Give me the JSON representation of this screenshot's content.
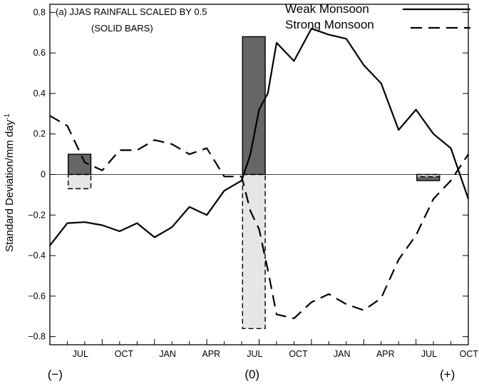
{
  "chart_data": {
    "type": "line",
    "title": "(a) JJAS RAINFALL SCALED BY 0.5",
    "subtitle": "(SOLID BARS)",
    "ylabel": "Standard Deviation/mm day",
    "ylabel_sup": "-1",
    "ylim": [
      -0.84,
      0.84
    ],
    "yticks": [
      -0.8,
      -0.6,
      -0.4,
      -0.2,
      0,
      0.2,
      0.4,
      0.6,
      0.8
    ],
    "ytick_labels": [
      "−0.8",
      "−0.6",
      "−0.4",
      "−0.2",
      "0",
      "0.2",
      "0.4",
      "0.6",
      "0.8"
    ],
    "xlim": [
      0,
      24
    ],
    "xticks": [
      {
        "x": 1.75,
        "label": "JUL"
      },
      {
        "x": 4.25,
        "label": "OCT"
      },
      {
        "x": 6.75,
        "label": "JAN"
      },
      {
        "x": 9.25,
        "label": "APR"
      },
      {
        "x": 11.75,
        "label": "JUL"
      },
      {
        "x": 14.25,
        "label": "OCT"
      },
      {
        "x": 16.75,
        "label": "JAN"
      },
      {
        "x": 19.25,
        "label": "APR"
      },
      {
        "x": 21.75,
        "label": "JUL"
      },
      {
        "x": 24.0,
        "label": "OCT"
      }
    ],
    "year_markers": [
      {
        "x": 0.3,
        "label": "(−)"
      },
      {
        "x": 11.6,
        "label": "(0)"
      },
      {
        "x": 22.8,
        "label": "(+)"
      }
    ],
    "series": [
      {
        "name": "Weak Monsoon",
        "style": "solid",
        "x": [
          0,
          1,
          2,
          3,
          4,
          5,
          6,
          7,
          8,
          9,
          10,
          11,
          11.5,
          12,
          12.5,
          13,
          14,
          15,
          16,
          17,
          18,
          19,
          20,
          21,
          22,
          23,
          24
        ],
        "values": [
          -0.35,
          -0.24,
          -0.235,
          -0.25,
          -0.28,
          -0.24,
          -0.31,
          -0.26,
          -0.16,
          -0.2,
          -0.08,
          -0.03,
          0.1,
          0.32,
          0.4,
          0.65,
          0.56,
          0.72,
          0.69,
          0.67,
          0.54,
          0.45,
          0.22,
          0.32,
          0.2,
          0.13,
          -0.12
        ]
      },
      {
        "name": "Strong Monsoon",
        "style": "dashed",
        "x": [
          0,
          1,
          2,
          3,
          4,
          5,
          6,
          7,
          8,
          9,
          10,
          11,
          11.5,
          12,
          12.5,
          13,
          14,
          15,
          16,
          17,
          18,
          19,
          20,
          21,
          22,
          23,
          24
        ],
        "values": [
          0.29,
          0.24,
          0.06,
          0.02,
          0.12,
          0.12,
          0.17,
          0.15,
          0.1,
          0.13,
          -0.01,
          -0.01,
          -0.18,
          -0.27,
          -0.47,
          -0.69,
          -0.71,
          -0.63,
          -0.59,
          -0.64,
          -0.67,
          -0.61,
          -0.42,
          -0.3,
          -0.12,
          -0.03,
          0.1
        ]
      }
    ],
    "bars": [
      {
        "x_start": 1.05,
        "x_end": 2.35,
        "weak": 0.1,
        "strong": -0.07
      },
      {
        "x_start": 11.05,
        "x_end": 12.35,
        "weak": 0.68,
        "strong": -0.76
      },
      {
        "x_start": 21.05,
        "x_end": 22.35,
        "weak": -0.03,
        "strong": -0.01
      }
    ],
    "colors": {
      "weak_bar": "#666666",
      "strong_bar": "#e6e6e6",
      "line": "#000000"
    },
    "legend_position": "top-right",
    "grid": false
  }
}
